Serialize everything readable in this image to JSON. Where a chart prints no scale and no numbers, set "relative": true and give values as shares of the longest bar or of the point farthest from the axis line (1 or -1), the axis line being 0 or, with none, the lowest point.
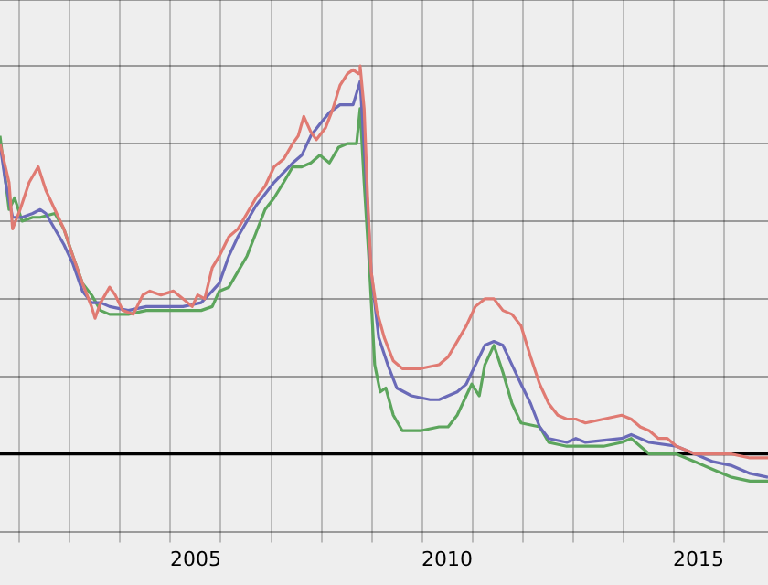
{
  "chart_data": {
    "type": "line",
    "relative": true,
    "grid": true,
    "xlim": [
      2001.61,
      2016.88
    ],
    "xticks": [
      {
        "value": 2002,
        "label": null
      },
      {
        "value": 2003,
        "label": null
      },
      {
        "value": 2004,
        "label": null
      },
      {
        "value": 2005,
        "label": null
      },
      {
        "value": 2005.5,
        "label": "2005"
      },
      {
        "value": 2006,
        "label": null
      },
      {
        "value": 2007,
        "label": null
      },
      {
        "value": 2008,
        "label": null
      },
      {
        "value": 2009,
        "label": null
      },
      {
        "value": 2010,
        "label": null
      },
      {
        "value": 2010.5,
        "label": "2010"
      },
      {
        "value": 2011,
        "label": null
      },
      {
        "value": 2012,
        "label": null
      },
      {
        "value": 2013,
        "label": null
      },
      {
        "value": 2014,
        "label": null
      },
      {
        "value": 2015,
        "label": null
      },
      {
        "value": 2015.5,
        "label": "2015"
      },
      {
        "value": 2016,
        "label": null
      }
    ],
    "series": [
      {
        "color": "#e07a72",
        "x": [
          2001.61,
          2001.79,
          2001.86,
          2002.01,
          2002.19,
          2002.37,
          2002.52,
          2002.7,
          2002.88,
          2003.06,
          2003.25,
          2003.43,
          2003.5,
          2003.61,
          2003.79,
          2003.9,
          2004.05,
          2004.26,
          2004.45,
          2004.59,
          2004.81,
          2005.06,
          2005.25,
          2005.43,
          2005.54,
          2005.68,
          2005.83,
          2005.97,
          2006.16,
          2006.34,
          2006.52,
          2006.7,
          2006.88,
          2007.06,
          2007.25,
          2007.43,
          2007.54,
          2007.65,
          2007.79,
          2007.9,
          2008.08,
          2008.23,
          2008.37,
          2008.52,
          2008.63,
          2008.74,
          2008.77,
          2008.85,
          2008.92,
          2008.99,
          2009.1,
          2009.25,
          2009.43,
          2009.61,
          2009.97,
          2010.34,
          2010.52,
          2010.7,
          2010.88,
          2011.06,
          2011.25,
          2011.43,
          2011.61,
          2011.79,
          2011.97,
          2012.16,
          2012.34,
          2012.52,
          2012.7,
          2012.88,
          2013.06,
          2013.25,
          2013.61,
          2013.97,
          2014.16,
          2014.34,
          2014.52,
          2014.7,
          2014.88,
          2015.06,
          2015.25,
          2015.43,
          2015.79,
          2016.16,
          2016.52,
          2016.88
        ],
        "values": [
          0.8,
          0.7,
          0.58,
          0.63,
          0.7,
          0.74,
          0.68,
          0.63,
          0.58,
          0.51,
          0.44,
          0.38,
          0.35,
          0.39,
          0.43,
          0.41,
          0.37,
          0.36,
          0.41,
          0.42,
          0.41,
          0.42,
          0.4,
          0.38,
          0.41,
          0.4,
          0.48,
          0.51,
          0.56,
          0.58,
          0.62,
          0.66,
          0.69,
          0.74,
          0.76,
          0.8,
          0.82,
          0.87,
          0.83,
          0.81,
          0.84,
          0.89,
          0.95,
          0.98,
          0.99,
          0.98,
          1,
          0.89,
          0.66,
          0.47,
          0.37,
          0.3,
          0.24,
          0.22,
          0.22,
          0.23,
          0.25,
          0.29,
          0.33,
          0.38,
          0.4,
          0.4,
          0.37,
          0.36,
          0.33,
          0.25,
          0.18,
          0.13,
          0.1,
          0.09,
          0.09,
          0.08,
          0.09,
          0.1,
          0.09,
          0.07,
          0.06,
          0.04,
          0.04,
          0.02,
          0.01,
          0,
          0,
          0,
          -0.01,
          -0.01
        ]
      },
      {
        "color": "#6a6ab8",
        "x": [
          2001.61,
          2001.72,
          2001.86,
          2002.05,
          2002.26,
          2002.41,
          2002.52,
          2002.7,
          2002.88,
          2003.06,
          2003.25,
          2003.43,
          2003.61,
          2003.79,
          2004.16,
          2004.52,
          2004.88,
          2005.25,
          2005.61,
          2005.83,
          2005.97,
          2006.16,
          2006.34,
          2006.7,
          2007.06,
          2007.43,
          2007.61,
          2007.79,
          2007.97,
          2008.16,
          2008.37,
          2008.63,
          2008.77,
          2008.88,
          2008.99,
          2009.14,
          2009.32,
          2009.5,
          2009.79,
          2010.16,
          2010.34,
          2010.52,
          2010.7,
          2010.88,
          2010.99,
          2011.14,
          2011.25,
          2011.43,
          2011.61,
          2011.79,
          2011.97,
          2012.16,
          2012.34,
          2012.52,
          2012.88,
          2013.06,
          2013.25,
          2013.97,
          2014.16,
          2014.34,
          2014.52,
          2015.06,
          2015.43,
          2015.79,
          2016.16,
          2016.52,
          2016.88
        ],
        "values": [
          0.8,
          0.7,
          0.61,
          0.61,
          0.62,
          0.63,
          0.62,
          0.58,
          0.54,
          0.49,
          0.42,
          0.39,
          0.39,
          0.38,
          0.37,
          0.38,
          0.38,
          0.38,
          0.39,
          0.42,
          0.44,
          0.51,
          0.56,
          0.64,
          0.7,
          0.75,
          0.77,
          0.82,
          0.85,
          0.88,
          0.9,
          0.9,
          0.96,
          0.73,
          0.47,
          0.3,
          0.23,
          0.17,
          0.15,
          0.14,
          0.14,
          0.15,
          0.16,
          0.18,
          0.21,
          0.25,
          0.28,
          0.29,
          0.28,
          0.23,
          0.18,
          0.13,
          0.07,
          0.04,
          0.03,
          0.04,
          0.03,
          0.04,
          0.05,
          0.04,
          0.03,
          0.02,
          0,
          -0.02,
          -0.03,
          -0.05,
          -0.06
        ]
      },
      {
        "color": "#5ca55c",
        "x": [
          2001.61,
          2001.79,
          2001.9,
          2002.05,
          2002.26,
          2002.41,
          2002.7,
          2002.88,
          2003.06,
          2003.25,
          2003.43,
          2003.61,
          2003.79,
          2004.16,
          2004.52,
          2004.88,
          2005.25,
          2005.61,
          2005.83,
          2005.97,
          2006.16,
          2006.34,
          2006.52,
          2006.7,
          2006.88,
          2007.06,
          2007.25,
          2007.43,
          2007.61,
          2007.79,
          2007.97,
          2008.16,
          2008.34,
          2008.52,
          2008.7,
          2008.77,
          2008.85,
          2008.96,
          2009.06,
          2009.17,
          2009.28,
          2009.43,
          2009.61,
          2009.97,
          2010.34,
          2010.52,
          2010.7,
          2010.88,
          2010.99,
          2011.14,
          2011.25,
          2011.43,
          2011.61,
          2011.79,
          2011.97,
          2012.34,
          2012.52,
          2012.88,
          2013.61,
          2013.97,
          2014.16,
          2014.52,
          2015.06,
          2015.43,
          2015.79,
          2016.16,
          2016.52,
          2016.88
        ],
        "values": [
          0.82,
          0.63,
          0.66,
          0.6,
          0.61,
          0.61,
          0.62,
          0.58,
          0.51,
          0.44,
          0.41,
          0.37,
          0.36,
          0.36,
          0.37,
          0.37,
          0.37,
          0.37,
          0.38,
          0.42,
          0.43,
          0.47,
          0.51,
          0.57,
          0.63,
          0.66,
          0.7,
          0.74,
          0.74,
          0.75,
          0.77,
          0.75,
          0.79,
          0.8,
          0.8,
          0.89,
          0.7,
          0.47,
          0.23,
          0.16,
          0.17,
          0.1,
          0.06,
          0.06,
          0.07,
          0.07,
          0.1,
          0.15,
          0.18,
          0.15,
          0.23,
          0.28,
          0.21,
          0.13,
          0.08,
          0.07,
          0.03,
          0.02,
          0.02,
          0.03,
          0.04,
          0,
          0,
          -0.02,
          -0.04,
          -0.06,
          -0.07,
          -0.07
        ]
      }
    ]
  }
}
